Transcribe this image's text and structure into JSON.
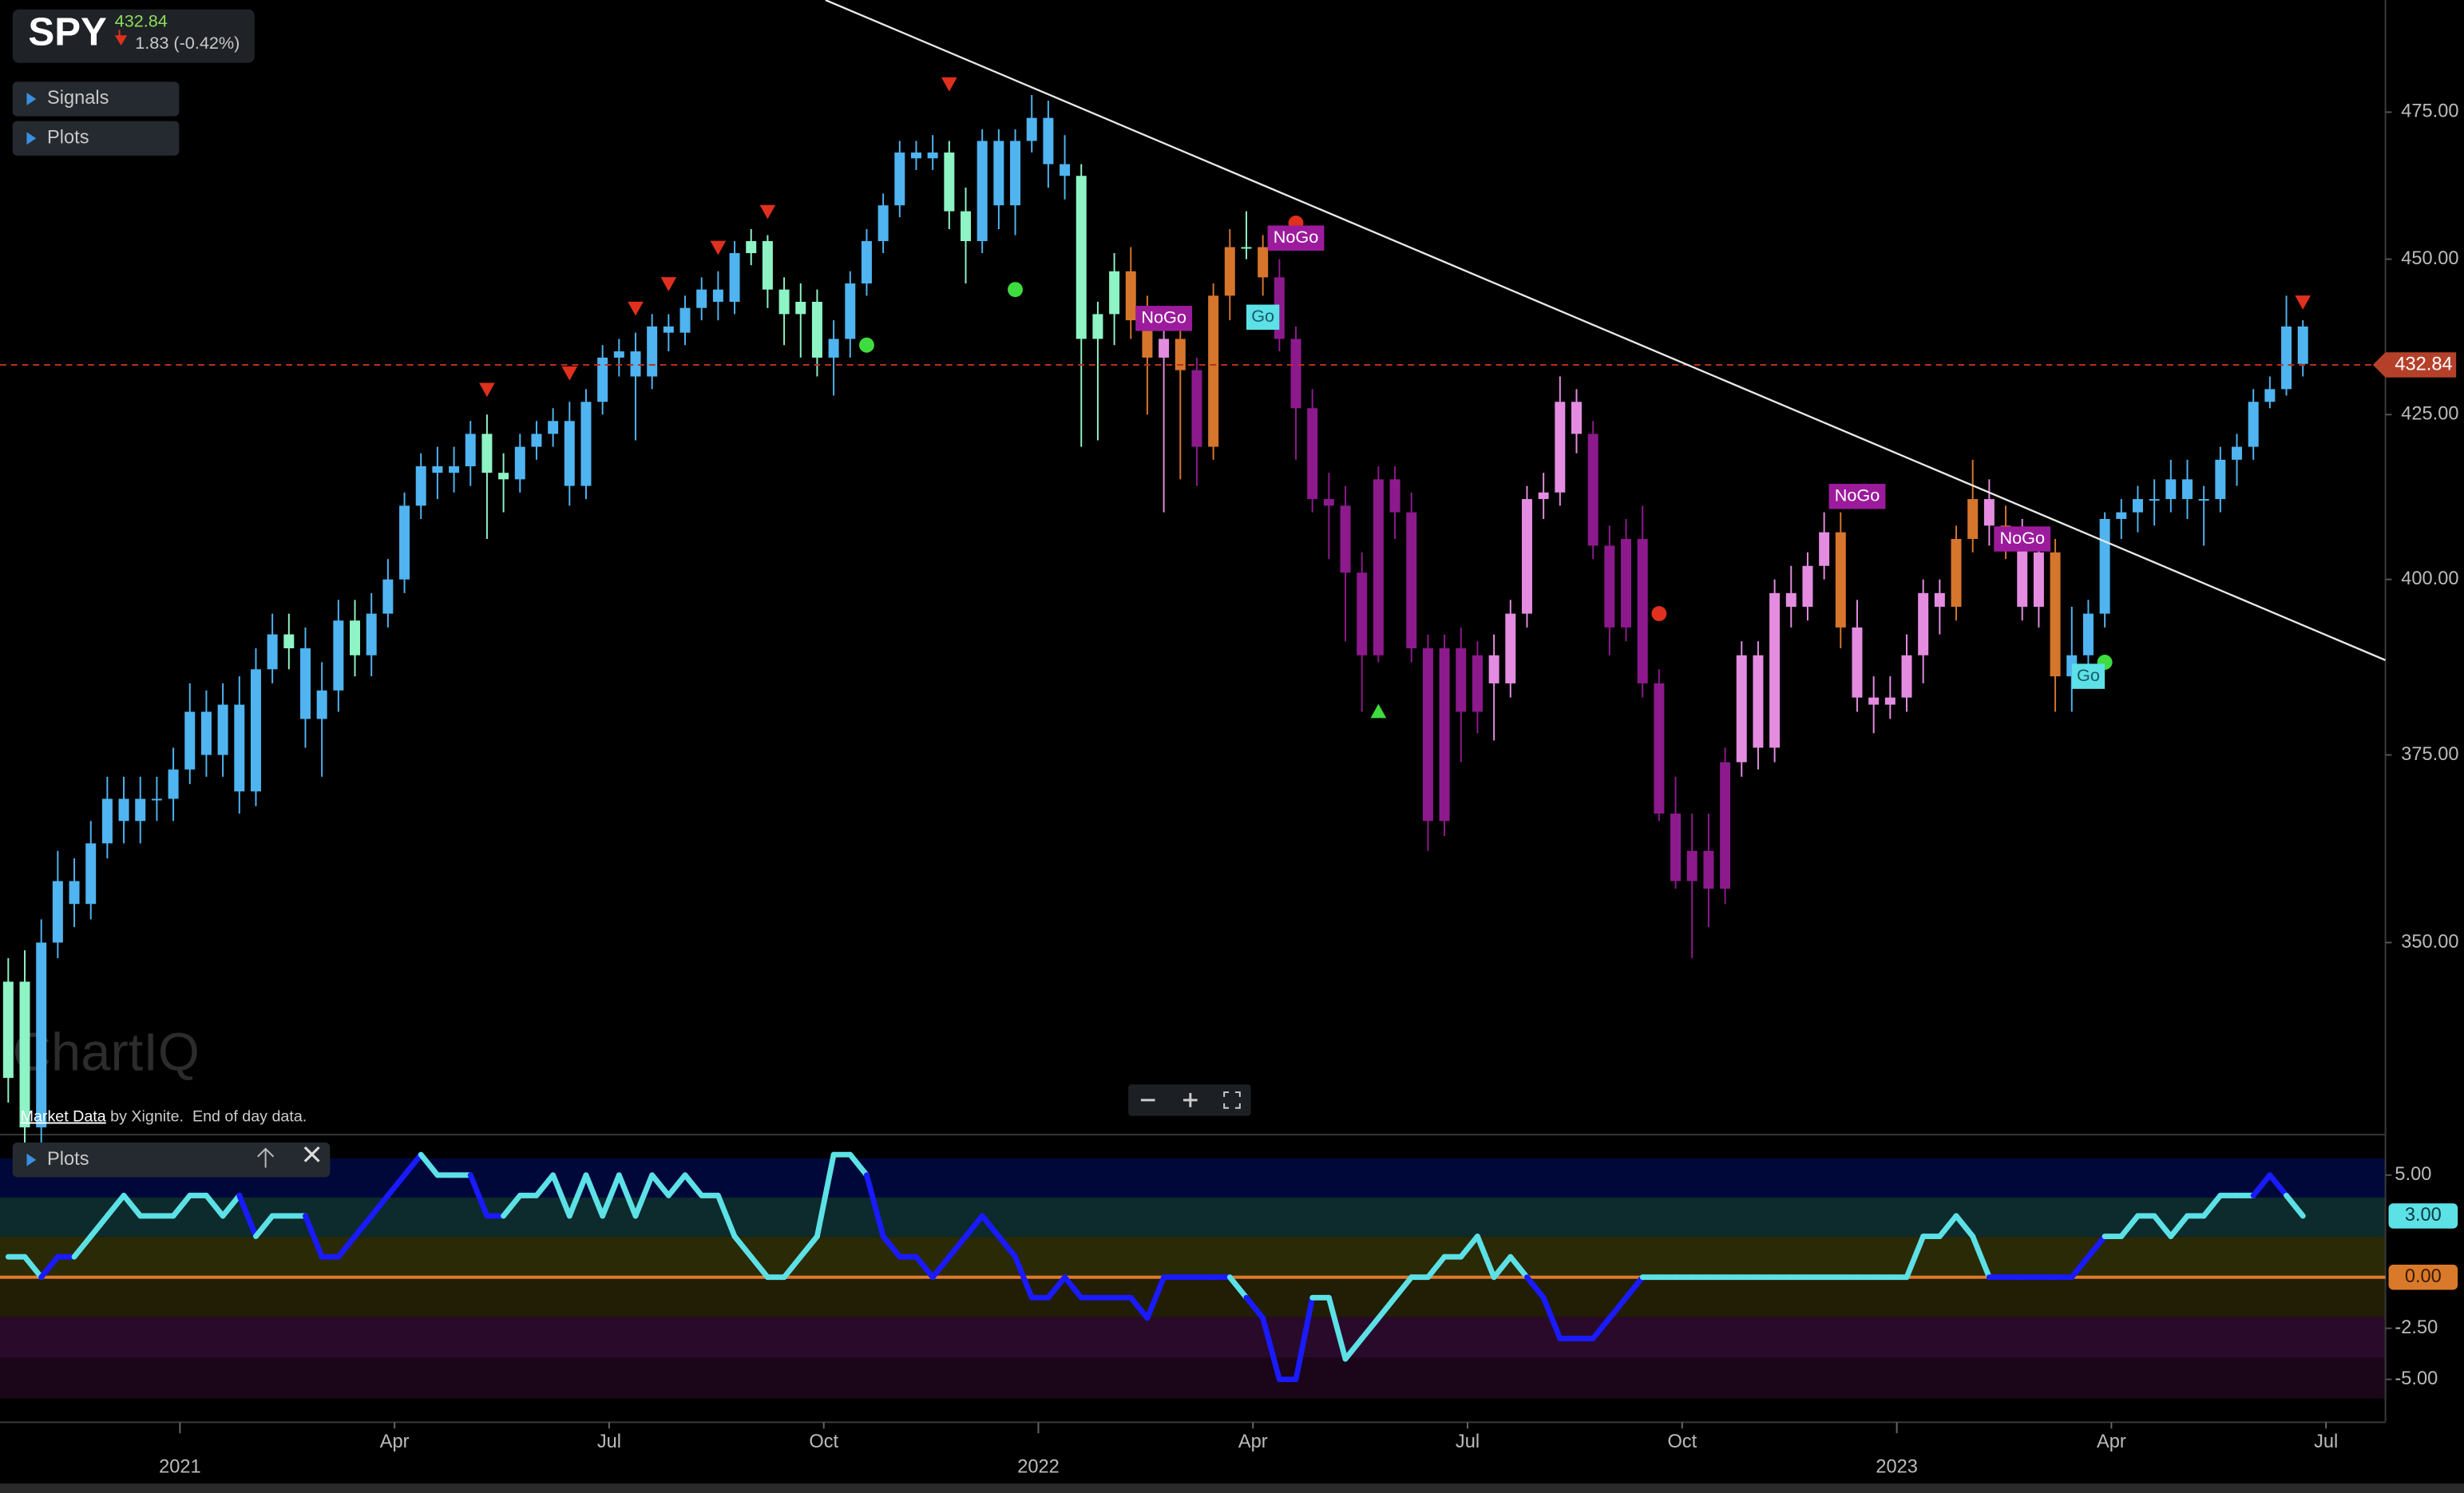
{
  "header": {
    "symbol": "SPY",
    "price": 432.84,
    "change": "1.83 (-0.42%)"
  },
  "menu": [
    "Signals",
    "Plots"
  ],
  "lower_menu": "Plots",
  "footer": {
    "link": "Market Data",
    "text": "by Xignite.  End of day data."
  },
  "watermark": "ChartIQ",
  "chart_data": [
    {
      "type": "candlestick",
      "log_scale": true,
      "xlim": [
        -0.5,
        144
      ],
      "ylim": [
        326.5,
        495
      ],
      "yticks": [
        {
          "value": 475,
          "label": "475.00"
        },
        {
          "value": 450,
          "label": "450.00"
        },
        {
          "value": 425,
          "label": "425.00"
        },
        {
          "value": 400,
          "label": "400.00"
        },
        {
          "value": 375,
          "label": "375.00"
        },
        {
          "value": 350,
          "label": "350.00"
        }
      ],
      "xticks": [
        {
          "value": 10.4,
          "label": "2021"
        },
        {
          "value": 23.4,
          "label": "Apr"
        },
        {
          "value": 36.4,
          "label": "Jul"
        },
        {
          "value": 49.4,
          "label": "Oct"
        },
        {
          "value": 62.4,
          "label": "2022"
        },
        {
          "value": 75.4,
          "label": "Apr"
        },
        {
          "value": 88.4,
          "label": "Jul"
        },
        {
          "value": 101.4,
          "label": "Oct"
        },
        {
          "value": 114.4,
          "label": "2023"
        },
        {
          "value": 127.4,
          "label": "Apr"
        },
        {
          "value": 140.4,
          "label": "Jul"
        }
      ],
      "last_price": 432.84,
      "palette": [
        "#4fb4f0",
        "#8ef3c5",
        "#d6762d",
        "#e38ce0",
        "#8c1a8c"
      ],
      "color_index": [
        1,
        1,
        0,
        0,
        0,
        0,
        0,
        0,
        0,
        0,
        0,
        0,
        0,
        0,
        0,
        0,
        0,
        1,
        0,
        0,
        0,
        1,
        0,
        0,
        0,
        0,
        0,
        0,
        0,
        1,
        1,
        0,
        0,
        0,
        0,
        0,
        0,
        0,
        0,
        0,
        0,
        0,
        0,
        0,
        0,
        1,
        1,
        1,
        1,
        1,
        0,
        0,
        0,
        0,
        0,
        0,
        0,
        1,
        1,
        0,
        0,
        0,
        0,
        0,
        0,
        1,
        1,
        1,
        2,
        2,
        3,
        2,
        4,
        2,
        2,
        1,
        2,
        4,
        4,
        4,
        4,
        4,
        4,
        4,
        4,
        4,
        4,
        4,
        4,
        4,
        3,
        3,
        3,
        3,
        3,
        3,
        4,
        4,
        4,
        4,
        4,
        4,
        4,
        4,
        4,
        3,
        3,
        3,
        3,
        3,
        3,
        2,
        3,
        3,
        3,
        3,
        3,
        3,
        2,
        2,
        3,
        2,
        3,
        3,
        2,
        0,
        0,
        0,
        0,
        0,
        0,
        0,
        0,
        0,
        0,
        0,
        0,
        0,
        0,
        0
      ],
      "open": [
        333,
        345,
        327,
        350,
        358,
        355,
        363,
        369,
        366,
        369,
        369,
        373,
        381,
        375,
        382,
        370,
        387,
        392,
        390,
        380,
        384,
        394,
        389,
        395,
        400,
        411,
        417,
        416,
        417,
        422,
        416,
        415,
        420,
        422,
        424,
        414,
        427,
        434,
        435,
        431,
        439,
        438,
        442,
        445,
        443,
        451,
        453,
        445,
        441,
        443,
        434,
        437,
        446,
        453,
        459,
        468,
        467,
        468,
        458,
        453,
        470,
        459,
        470,
        474,
        466,
        464,
        437,
        441,
        448,
        440,
        434,
        437,
        432,
        420,
        444,
        452,
        452,
        447,
        437,
        426,
        412,
        411,
        401,
        389,
        415,
        410,
        390,
        366,
        390,
        381,
        389,
        385,
        395,
        412,
        413,
        427,
        422,
        405,
        393,
        406,
        385,
        367,
        358,
        362,
        357,
        374,
        389,
        376,
        398,
        396,
        402,
        407,
        393,
        383,
        382,
        383,
        389,
        398,
        396,
        406,
        412,
        408,
        407,
        396,
        404,
        386,
        389,
        395,
        409,
        410,
        412,
        412,
        415,
        412,
        412,
        418,
        420,
        427,
        429,
        439
      ],
      "high": [
        348,
        349,
        353,
        362,
        361,
        366,
        372,
        372,
        372,
        372,
        376,
        385,
        384,
        385,
        386,
        390,
        395,
        395,
        393,
        388,
        397,
        397,
        398,
        403,
        413,
        419,
        420,
        420,
        424,
        425,
        419,
        422,
        424,
        426,
        427,
        429,
        436,
        437,
        438,
        441,
        441,
        444,
        447,
        448,
        453,
        455,
        454,
        447,
        446,
        445,
        440,
        448,
        455,
        461,
        470,
        470,
        471,
        470,
        462,
        472,
        472,
        472,
        478,
        477,
        471,
        466,
        443,
        451,
        452,
        444,
        441,
        440,
        434,
        446,
        455,
        458,
        454,
        450,
        439,
        429,
        416,
        414,
        404,
        417,
        417,
        413,
        392,
        392,
        393,
        391,
        392,
        397,
        414,
        416,
        431,
        429,
        424,
        408,
        409,
        411,
        387,
        372,
        367,
        367,
        376,
        391,
        391,
        400,
        402,
        404,
        410,
        410,
        397,
        386,
        386,
        392,
        400,
        400,
        408,
        418,
        415,
        411,
        409,
        406,
        406,
        396,
        397,
        410,
        412,
        414,
        415,
        418,
        418,
        414,
        420,
        422,
        429,
        431,
        444,
        440
      ],
      "low": [
        330,
        322,
        325,
        348,
        352,
        353,
        361,
        363,
        363,
        366,
        366,
        371,
        372,
        372,
        367,
        368,
        385,
        387,
        376,
        372,
        381,
        386,
        386,
        393,
        398,
        409,
        412,
        413,
        414,
        406,
        410,
        413,
        418,
        420,
        411,
        412,
        425,
        431,
        421,
        429,
        435,
        436,
        440,
        440,
        441,
        449,
        442,
        436,
        434,
        431,
        428,
        434,
        444,
        451,
        457,
        465,
        465,
        455,
        446,
        451,
        455,
        454,
        468,
        462,
        460,
        420,
        421,
        436,
        437,
        425,
        410,
        415,
        414,
        418,
        440,
        450,
        444,
        435,
        418,
        410,
        403,
        391,
        381,
        388,
        406,
        388,
        362,
        364,
        374,
        378,
        377,
        383,
        393,
        409,
        411,
        419,
        403,
        389,
        391,
        383,
        366,
        357,
        348,
        352,
        355,
        372,
        373,
        374,
        393,
        394,
        400,
        390,
        381,
        378,
        380,
        381,
        385,
        392,
        394,
        404,
        405,
        403,
        394,
        393,
        381,
        381,
        387,
        393,
        406,
        407,
        408,
        410,
        409,
        405,
        410,
        414,
        418,
        426,
        428,
        431
      ],
      "close": [
        345,
        327,
        350,
        358,
        355,
        363,
        369,
        366,
        369,
        369,
        373,
        381,
        375,
        382,
        370,
        387,
        392,
        390,
        380,
        384,
        394,
        389,
        395,
        400,
        411,
        417,
        416,
        417,
        422,
        416,
        415,
        420,
        422,
        424,
        414,
        427,
        434,
        435,
        431,
        439,
        438,
        442,
        445,
        443,
        451,
        453,
        445,
        441,
        443,
        434,
        437,
        446,
        453,
        459,
        468,
        467,
        468,
        458,
        453,
        470,
        459,
        470,
        474,
        466,
        464,
        437,
        441,
        448,
        440,
        434,
        437,
        432,
        420,
        444,
        452,
        452,
        447,
        437,
        426,
        412,
        411,
        401,
        389,
        415,
        410,
        390,
        366,
        390,
        381,
        389,
        385,
        395,
        412,
        413,
        427,
        422,
        405,
        393,
        406,
        385,
        367,
        358,
        362,
        357,
        374,
        389,
        376,
        398,
        396,
        402,
        407,
        393,
        383,
        382,
        383,
        389,
        398,
        396,
        406,
        412,
        408,
        407,
        396,
        404,
        386,
        389,
        395,
        409,
        410,
        412,
        412,
        415,
        412,
        412,
        418,
        420,
        427,
        429,
        439,
        433
      ],
      "trendline": {
        "x": [
          49.5,
          144
        ],
        "y": [
          495,
          388.3
        ]
      },
      "signals": [
        {
          "shape": "triangle-down",
          "color": "#e0301e",
          "x": 29,
          "y": 429
        },
        {
          "shape": "triangle-down",
          "color": "#e0301e",
          "x": 34,
          "y": 431.6
        },
        {
          "shape": "triangle-down",
          "color": "#e0301e",
          "x": 38,
          "y": 442
        },
        {
          "shape": "triangle-down",
          "color": "#e0301e",
          "x": 40,
          "y": 446
        },
        {
          "shape": "triangle-down",
          "color": "#e0301e",
          "x": 43,
          "y": 452
        },
        {
          "shape": "triangle-down",
          "color": "#e0301e",
          "x": 46,
          "y": 458
        },
        {
          "shape": "triangle-down",
          "color": "#e0301e",
          "x": 57,
          "y": 480
        },
        {
          "shape": "triangle-down",
          "color": "#e0301e",
          "x": 139,
          "y": 443
        },
        {
          "shape": "dot",
          "color": "#3fdc3f",
          "x": 52,
          "y": 436
        },
        {
          "shape": "dot",
          "color": "#3fdc3f",
          "x": 61,
          "y": 445
        },
        {
          "shape": "dot",
          "color": "#e0301e",
          "x": 78,
          "y": 456
        },
        {
          "shape": "dot",
          "color": "#e0301e",
          "x": 100,
          "y": 395
        },
        {
          "shape": "dot",
          "color": "#3fdc3f",
          "x": 127,
          "y": 388
        },
        {
          "shape": "triangle-up",
          "color": "#3fdc3f",
          "x": 83,
          "y": 381
        }
      ],
      "labels": [
        {
          "label": "NoGo",
          "color": "#9c1b9c",
          "x": 70,
          "y": 440.3
        },
        {
          "label": "Go",
          "color": "#5ce1e6",
          "x": 76,
          "y": 440.5
        },
        {
          "label": "NoGo",
          "color": "#9c1b9c",
          "x": 78,
          "y": 453.5
        },
        {
          "label": "NoGo",
          "color": "#9c1b9c",
          "x": 112,
          "y": 412.4
        },
        {
          "label": "NoGo",
          "color": "#9c1b9c",
          "x": 122,
          "y": 406
        },
        {
          "label": "Go",
          "color": "#5ce1e6",
          "x": 126,
          "y": 386
        }
      ]
    },
    {
      "type": "line",
      "ylim": [
        -7.1,
        6.9
      ],
      "yticks": [
        {
          "value": 5,
          "label": "5.00"
        },
        {
          "value": -2.5,
          "label": "-2.50"
        },
        {
          "value": -5,
          "label": "-5.00"
        }
      ],
      "zero_label": {
        "value": 0,
        "label": "0.00"
      },
      "last_label": "3.00",
      "palette": [
        "#5ce1e6",
        "#1a1aff"
      ],
      "values": [
        1,
        1,
        0,
        1,
        1,
        2,
        3,
        4,
        3,
        3,
        3,
        4,
        4,
        3,
        4,
        2,
        3,
        3,
        3,
        1,
        1,
        2,
        3,
        4,
        5,
        6,
        5,
        5,
        5,
        3,
        3,
        4,
        4,
        5,
        3,
        5,
        3,
        5,
        3,
        5,
        4,
        5,
        4,
        4,
        2,
        1,
        0,
        0,
        1,
        2,
        6,
        6,
        5,
        2,
        1,
        1,
        0,
        1,
        2,
        3,
        2,
        1,
        -1,
        -1,
        0,
        -1,
        -1,
        -1,
        -1,
        -2,
        0,
        0,
        0,
        0,
        0,
        -1,
        -2,
        -5,
        -5,
        -1,
        -1,
        -4,
        -3,
        -2,
        -1,
        0,
        0,
        1,
        1,
        2,
        0,
        1,
        0,
        -1,
        -3,
        -3,
        -3,
        -2,
        -1,
        0,
        0,
        0,
        0,
        0,
        0,
        0,
        0,
        0,
        0,
        0,
        0,
        0,
        0,
        0,
        0,
        0,
        2,
        2,
        3,
        2,
        0,
        0,
        0,
        0,
        0,
        0,
        1,
        2,
        2,
        3,
        3,
        2,
        3,
        3,
        4,
        4,
        4,
        5,
        4,
        3
      ],
      "color_index": [
        0,
        0,
        0,
        1,
        1,
        0,
        0,
        0,
        0,
        0,
        0,
        0,
        0,
        0,
        0,
        1,
        0,
        0,
        0,
        1,
        1,
        1,
        1,
        1,
        1,
        1,
        0,
        0,
        0,
        1,
        1,
        0,
        0,
        0,
        0,
        0,
        0,
        0,
        0,
        0,
        0,
        0,
        0,
        0,
        0,
        0,
        0,
        0,
        0,
        0,
        0,
        0,
        0,
        1,
        1,
        1,
        1,
        1,
        1,
        1,
        1,
        1,
        1,
        1,
        1,
        1,
        1,
        1,
        1,
        1,
        1,
        1,
        1,
        1,
        1,
        0,
        1,
        1,
        1,
        1,
        0,
        0,
        0,
        0,
        0,
        0,
        0,
        0,
        0,
        0,
        0,
        0,
        0,
        1,
        1,
        1,
        1,
        1,
        1,
        1,
        0,
        0,
        0,
        0,
        0,
        0,
        0,
        0,
        0,
        0,
        0,
        0,
        0,
        0,
        0,
        0,
        0,
        0,
        0,
        0,
        0,
        1,
        1,
        1,
        1,
        1,
        1,
        1,
        0,
        0,
        0,
        0,
        0,
        0,
        0,
        0,
        0,
        1,
        1,
        0
      ]
    }
  ]
}
